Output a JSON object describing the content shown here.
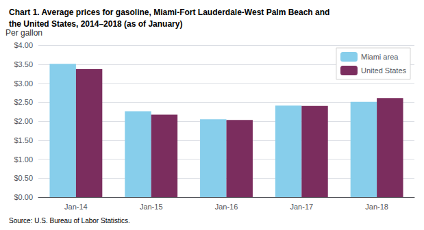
{
  "chart_data": {
    "type": "bar",
    "title": "Chart 1. Average prices for gasoline, Miami-Fort Lauderdale-West Palm Beach and\nthe United States, 2014–2018 (as of January)",
    "ylabel": "Per gallon",
    "source": "Source: U.S. Bureau of Labor Statistics.",
    "categories": [
      "Jan-14",
      "Jan-15",
      "Jan-16",
      "Jan-17",
      "Jan-18"
    ],
    "series": [
      {
        "name": "Miami area",
        "color": "#87CEEB",
        "values": [
          3.51,
          2.26,
          2.05,
          2.41,
          2.51
        ]
      },
      {
        "name": "United States",
        "color": "#7B2D5E",
        "values": [
          3.37,
          2.17,
          2.03,
          2.4,
          2.61
        ]
      }
    ],
    "ylim": [
      0.0,
      4.0
    ],
    "yticks": [
      {
        "value": 0.0,
        "label": "$0.00"
      },
      {
        "value": 0.5,
        "label": "$0.50"
      },
      {
        "value": 1.0,
        "label": "$1.00"
      },
      {
        "value": 1.5,
        "label": "$1.50"
      },
      {
        "value": 2.0,
        "label": "$2.00"
      },
      {
        "value": 2.5,
        "label": "$2.50"
      },
      {
        "value": 3.0,
        "label": "$3.00"
      },
      {
        "value": 3.5,
        "label": "$3.50"
      },
      {
        "value": 4.0,
        "label": "$4.00"
      }
    ],
    "grid": true,
    "legend": "upper right"
  }
}
